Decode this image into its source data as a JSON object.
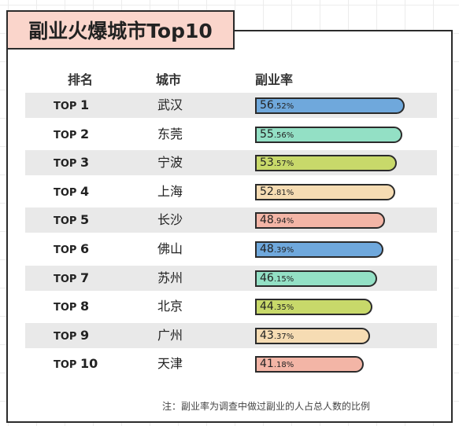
{
  "title": "副业火爆城市Top10",
  "headers": {
    "rank": "排名",
    "city": "城市",
    "rate": "副业率"
  },
  "note": "注：副业率为调查中做过副业的人占总人数的比例",
  "colors": {
    "blue": "#6fa8dc",
    "green": "#93e0c5",
    "olive": "#c8d96a",
    "peach": "#f6dcb3",
    "pink": "#f3b5a6",
    "shade": "#e9e9e9"
  },
  "chart_data": {
    "type": "bar",
    "title": "副业火爆城市Top10",
    "orientation": "horizontal",
    "unit": "%",
    "ranks": [
      "1",
      "2",
      "3",
      "4",
      "5",
      "6",
      "7",
      "8",
      "9",
      "10"
    ],
    "rank_prefix": "TOP",
    "categories": [
      "武汉",
      "东莞",
      "宁波",
      "上海",
      "长沙",
      "佛山",
      "苏州",
      "北京",
      "广州",
      "天津"
    ],
    "values": [
      56.52,
      55.56,
      53.57,
      52.81,
      48.94,
      48.39,
      46.15,
      44.35,
      43.37,
      41.18
    ],
    "bar_colors": [
      "#6fa8dc",
      "#93e0c5",
      "#c8d96a",
      "#f6dcb3",
      "#f3b5a6",
      "#6fa8dc",
      "#93e0c5",
      "#c8d96a",
      "#f6dcb3",
      "#f3b5a6"
    ]
  }
}
